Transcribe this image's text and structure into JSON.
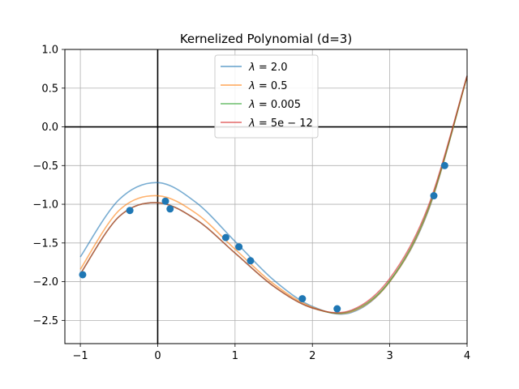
{
  "chart_data": {
    "type": "line",
    "title": "Kernelized Polynomial (d=3)",
    "xlabel": "",
    "ylabel": "",
    "xlim": [
      -1.2,
      4.0
    ],
    "ylim": [
      -2.8,
      1.0
    ],
    "xticks": [
      -1,
      0,
      1,
      2,
      3,
      4
    ],
    "yticks": [
      1.0,
      0.5,
      0.0,
      -0.5,
      -1.0,
      -1.5,
      -2.0,
      -2.5
    ],
    "xtick_labels": [
      "−1",
      "0",
      "1",
      "2",
      "3",
      "4"
    ],
    "ytick_labels": [
      "1.0",
      "0.5",
      "0.0",
      "−0.5",
      "−1.0",
      "−1.5",
      "−2.0",
      "−2.5"
    ],
    "grid": true,
    "legend_position": "top-center",
    "series": [
      {
        "name": "λ = 2.0",
        "label_main": "λ",
        "label_rest": " = 2.0",
        "color": "#1f77b4",
        "x": [
          -1.0,
          -0.5,
          0.0,
          0.5,
          1.0,
          1.5,
          2.0,
          2.5,
          3.0,
          3.5,
          4.0
        ],
        "y": [
          -1.68,
          -0.94,
          -0.72,
          -0.98,
          -1.48,
          -1.98,
          -2.32,
          -2.4,
          -2.0,
          -1.08,
          0.66
        ]
      },
      {
        "name": "λ = 0.5",
        "label_main": "λ",
        "label_rest": " = 0.5",
        "color": "#ff7f0e",
        "x": [
          -1.0,
          -0.5,
          0.0,
          0.5,
          1.0,
          1.5,
          2.0,
          2.5,
          3.0,
          3.5,
          4.0
        ],
        "y": [
          -1.84,
          -1.08,
          -0.89,
          -1.12,
          -1.58,
          -2.03,
          -2.33,
          -2.39,
          -2.0,
          -1.07,
          0.65
        ]
      },
      {
        "name": "λ = 0.005",
        "label_main": "λ",
        "label_rest": " = 0.005",
        "color": "#2ca02c",
        "x": [
          -1.0,
          -0.5,
          0.0,
          0.5,
          1.0,
          1.5,
          2.0,
          2.5,
          3.0,
          3.5,
          4.0
        ],
        "y": [
          -1.9,
          -1.16,
          -0.98,
          -1.2,
          -1.63,
          -2.06,
          -2.34,
          -2.38,
          -1.99,
          -1.05,
          0.65
        ]
      },
      {
        "name": "λ = 5e − 12",
        "label_main": "λ",
        "label_rest": " = 5e − 12",
        "color": "#d62728",
        "x": [
          -1.0,
          -0.5,
          0.0,
          0.5,
          1.0,
          1.5,
          2.0,
          2.5,
          3.0,
          3.5,
          4.0
        ],
        "y": [
          -1.9,
          -1.16,
          -0.98,
          -1.2,
          -1.63,
          -2.06,
          -2.34,
          -2.37,
          -1.96,
          -1.02,
          0.66
        ]
      }
    ],
    "scatter": {
      "color": "#1f77b4",
      "x": [
        -0.97,
        -0.36,
        0.1,
        0.16,
        0.88,
        1.05,
        1.2,
        1.87,
        2.32,
        3.57,
        3.71
      ],
      "y": [
        -1.91,
        -1.08,
        -0.96,
        -1.06,
        -1.43,
        -1.55,
        -1.73,
        -2.22,
        -2.35,
        -0.89,
        -0.5
      ]
    }
  }
}
